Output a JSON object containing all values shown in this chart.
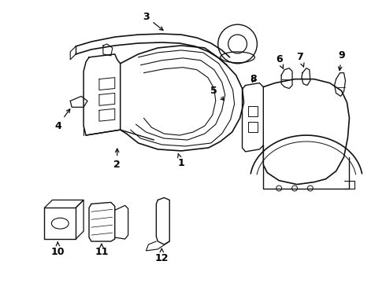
{
  "bg_color": "#ffffff",
  "line_color": "#111111",
  "label_color": "#000000",
  "figure_width": 4.9,
  "figure_height": 3.6,
  "dpi": 100
}
